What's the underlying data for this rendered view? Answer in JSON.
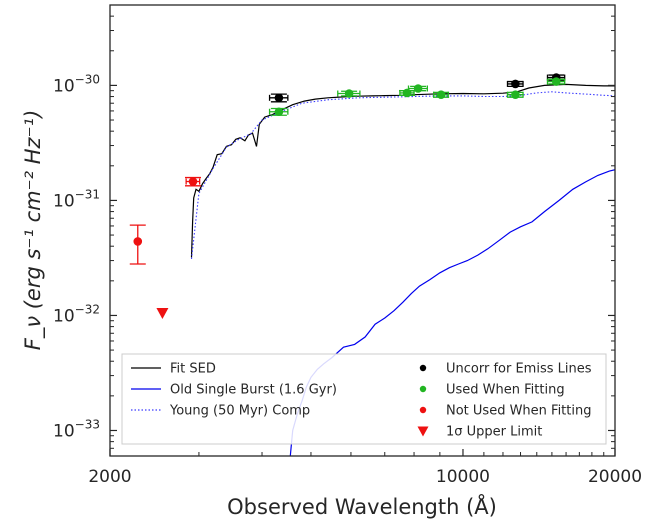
{
  "chart_data": {
    "type": "scatter",
    "title": "",
    "xlabel": "Observed Wavelength (Å)",
    "ylabel": "F_ν (erg s⁻¹ cm⁻² Hz⁻¹)",
    "xscale": "log",
    "yscale": "log",
    "xlim": [
      2000,
      20000
    ],
    "ylim": [
      6e-34,
      5e-30
    ],
    "grid": false,
    "legend_placement": "bottom",
    "xticks": [
      {
        "value": 2000,
        "label": "2000"
      },
      {
        "value": 10000,
        "label": "10000"
      },
      {
        "value": 20000,
        "label": "20000"
      }
    ],
    "yticks": [
      {
        "value": 1e-33,
        "label": "10",
        "exp": "−33"
      },
      {
        "value": 1e-32,
        "label": "10",
        "exp": "−32"
      },
      {
        "value": 1e-31,
        "label": "10",
        "exp": "−31"
      },
      {
        "value": 1e-30,
        "label": "10",
        "exp": "−30"
      }
    ],
    "lines": [
      {
        "name": "Fit SED",
        "color": "#000000",
        "style": "solid",
        "points": [
          [
            2900,
            3.2e-32
          ],
          [
            2915,
            6.5e-32
          ],
          [
            2930,
            1.05e-31
          ],
          [
            2960,
            1.25e-31
          ],
          [
            3000,
            1.2e-31
          ],
          [
            3050,
            1.4e-31
          ],
          [
            3100,
            1.55e-31
          ],
          [
            3150,
            1.7e-31
          ],
          [
            3200,
            1.95e-31
          ],
          [
            3260,
            2.5e-31
          ],
          [
            3330,
            2.55e-31
          ],
          [
            3400,
            2.95e-31
          ],
          [
            3480,
            3.05e-31
          ],
          [
            3550,
            3.4e-31
          ],
          [
            3620,
            3.5e-31
          ],
          [
            3700,
            3.3e-31
          ],
          [
            3760,
            3.7e-31
          ],
          [
            3830,
            3.85e-31
          ],
          [
            3900,
            2.95e-31
          ],
          [
            3950,
            4.6e-31
          ],
          [
            4050,
            5.3e-31
          ],
          [
            4200,
            5.6e-31
          ],
          [
            4400,
            6.2e-31
          ],
          [
            4600,
            6.8e-31
          ],
          [
            4850,
            7.3e-31
          ],
          [
            5100,
            7.6e-31
          ],
          [
            5400,
            7.8e-31
          ],
          [
            5800,
            7.95e-31
          ],
          [
            6200,
            8.05e-31
          ],
          [
            6600,
            8.1e-31
          ],
          [
            7000,
            8.15e-31
          ],
          [
            7500,
            8.2e-31
          ],
          [
            8000,
            8.3e-31
          ],
          [
            9000,
            8.45e-31
          ],
          [
            10000,
            8.5e-31
          ],
          [
            11000,
            8.45e-31
          ],
          [
            12000,
            8.55e-31
          ],
          [
            12800,
            8.8e-31
          ],
          [
            13500,
            9.5e-31
          ],
          [
            14500,
            1e-30
          ],
          [
            16000,
            1.02e-30
          ],
          [
            17500,
            1e-30
          ],
          [
            19000,
            9.9e-31
          ],
          [
            20000,
            9.9e-31
          ]
        ]
      },
      {
        "name": "Old Single Burst (1.6 Gyr)",
        "color": "#0000ee",
        "style": "solid",
        "points": [
          [
            4550,
            6e-34
          ],
          [
            4600,
            1e-33
          ],
          [
            4700,
            1.4e-33
          ],
          [
            4800,
            1.8e-33
          ],
          [
            4900,
            2.4e-33
          ],
          [
            5000,
            2.9e-33
          ],
          [
            5150,
            3.4e-33
          ],
          [
            5300,
            3.8e-33
          ],
          [
            5500,
            4.3e-33
          ],
          [
            5800,
            5.3e-33
          ],
          [
            6100,
            5.6e-33
          ],
          [
            6400,
            6.5e-33
          ],
          [
            6700,
            8.4e-33
          ],
          [
            7000,
            9.5e-33
          ],
          [
            7300,
            1.1e-32
          ],
          [
            7600,
            1.3e-32
          ],
          [
            7900,
            1.55e-32
          ],
          [
            8200,
            1.8e-32
          ],
          [
            8600,
            2.05e-32
          ],
          [
            9000,
            2.35e-32
          ],
          [
            9400,
            2.6e-32
          ],
          [
            9800,
            2.8e-32
          ],
          [
            10200,
            3e-32
          ],
          [
            10700,
            3.35e-32
          ],
          [
            11200,
            3.8e-32
          ],
          [
            11800,
            4.5e-32
          ],
          [
            12400,
            5.3e-32
          ],
          [
            13000,
            5.9e-32
          ],
          [
            13700,
            6.5e-32
          ],
          [
            14500,
            8e-32
          ],
          [
            15500,
            1e-31
          ],
          [
            16500,
            1.25e-31
          ],
          [
            17500,
            1.45e-31
          ],
          [
            18500,
            1.65e-31
          ],
          [
            19500,
            1.8e-31
          ],
          [
            20000,
            1.85e-31
          ]
        ]
      },
      {
        "name": "Young (50 Myr) Comp",
        "color": "#3b3bff",
        "style": "dotted",
        "points": [
          [
            2900,
            3.1e-32
          ],
          [
            3000,
            1.15e-31
          ],
          [
            3200,
            1.9e-31
          ],
          [
            3400,
            2.9e-31
          ],
          [
            3600,
            3.4e-31
          ],
          [
            3800,
            3.8e-31
          ],
          [
            4000,
            5e-31
          ],
          [
            4400,
            6e-31
          ],
          [
            4800,
            7e-31
          ],
          [
            5400,
            7.5e-31
          ],
          [
            6200,
            7.8e-31
          ],
          [
            7000,
            7.9e-31
          ],
          [
            8000,
            8e-31
          ],
          [
            9000,
            8.1e-31
          ],
          [
            10000,
            8.1e-31
          ],
          [
            11000,
            8e-31
          ],
          [
            12000,
            8e-31
          ],
          [
            13000,
            8.2e-31
          ],
          [
            14000,
            8.6e-31
          ],
          [
            15000,
            8.8e-31
          ],
          [
            16000,
            8.6e-31
          ],
          [
            17500,
            8.4e-31
          ],
          [
            19000,
            8.2e-31
          ],
          [
            20000,
            8.1e-31
          ]
        ]
      }
    ],
    "points": [
      {
        "group": "Uncorr for Emiss Lines",
        "color": "#000000",
        "x": 4320,
        "y": 7.8e-31,
        "xerr": 180,
        "yerr_lo": 6e-32,
        "yerr_hi": 6e-32
      },
      {
        "group": "Uncorr for Emiss Lines",
        "color": "#000000",
        "x": 12700,
        "y": 1.03e-30,
        "xerr": 450,
        "yerr_lo": 5e-32,
        "yerr_hi": 5e-32
      },
      {
        "group": "Uncorr for Emiss Lines",
        "color": "#000000",
        "x": 15300,
        "y": 1.17e-30,
        "xerr": 600,
        "yerr_lo": 6e-32,
        "yerr_hi": 6e-32
      },
      {
        "group": "Used When Fitting",
        "color": "#22b522",
        "x": 4320,
        "y": 5.9e-31,
        "xerr": 180,
        "yerr_lo": 4e-32,
        "yerr_hi": 4e-32
      },
      {
        "group": "Used When Fitting",
        "color": "#22b522",
        "x": 5950,
        "y": 8.5e-31,
        "xerr": 300,
        "yerr_lo": 4e-32,
        "yerr_hi": 4e-32
      },
      {
        "group": "Used When Fitting",
        "color": "#22b522",
        "x": 7750,
        "y": 8.6e-31,
        "xerr": 250,
        "yerr_lo": 4e-32,
        "yerr_hi": 4e-32
      },
      {
        "group": "Used When Fitting",
        "color": "#22b522",
        "x": 8150,
        "y": 9.4e-31,
        "xerr": 350,
        "yerr_lo": 4e-32,
        "yerr_hi": 4e-32
      },
      {
        "group": "Used When Fitting",
        "color": "#22b522",
        "x": 9050,
        "y": 8.3e-31,
        "xerr": 300,
        "yerr_lo": 4e-32,
        "yerr_hi": 4e-32
      },
      {
        "group": "Used When Fitting",
        "color": "#22b522",
        "x": 12700,
        "y": 8.3e-31,
        "xerr": 450,
        "yerr_lo": 4e-32,
        "yerr_hi": 4e-32
      },
      {
        "group": "Used When Fitting",
        "color": "#22b522",
        "x": 15300,
        "y": 1.08e-30,
        "xerr": 600,
        "yerr_lo": 5e-32,
        "yerr_hi": 5e-32
      },
      {
        "group": "Not Used When Fitting",
        "color": "#ee1111",
        "x": 2270,
        "y": 4.4e-32,
        "xerr": 0,
        "yerr_lo": 1.6e-32,
        "yerr_hi": 1.7e-32
      },
      {
        "group": "Not Used When Fitting",
        "color": "#ee1111",
        "x": 2920,
        "y": 1.46e-31,
        "xerr": 90,
        "yerr_lo": 1.2e-32,
        "yerr_hi": 1.2e-32
      },
      {
        "group": "1σ Upper Limit",
        "color": "#ee1111",
        "x": 2540,
        "y": 1.05e-32,
        "marker": "triangle-down"
      }
    ],
    "legend_lines": [
      {
        "label": "Fit SED",
        "color": "#000000",
        "style": "solid"
      },
      {
        "label": "Old Single Burst (1.6 Gyr)",
        "color": "#0000ee",
        "style": "solid"
      },
      {
        "label": "Young (50 Myr) Comp",
        "color": "#3b3bff",
        "style": "dotted"
      }
    ],
    "legend_markers": [
      {
        "label": "Uncorr for Emiss Lines",
        "color": "#000000",
        "marker": "circle"
      },
      {
        "label": "Used When Fitting",
        "color": "#22b522",
        "marker": "circle"
      },
      {
        "label": "Not Used When Fitting",
        "color": "#ee1111",
        "marker": "circle"
      },
      {
        "label": "1σ Upper Limit",
        "color": "#ee1111",
        "marker": "triangle-down"
      }
    ]
  }
}
